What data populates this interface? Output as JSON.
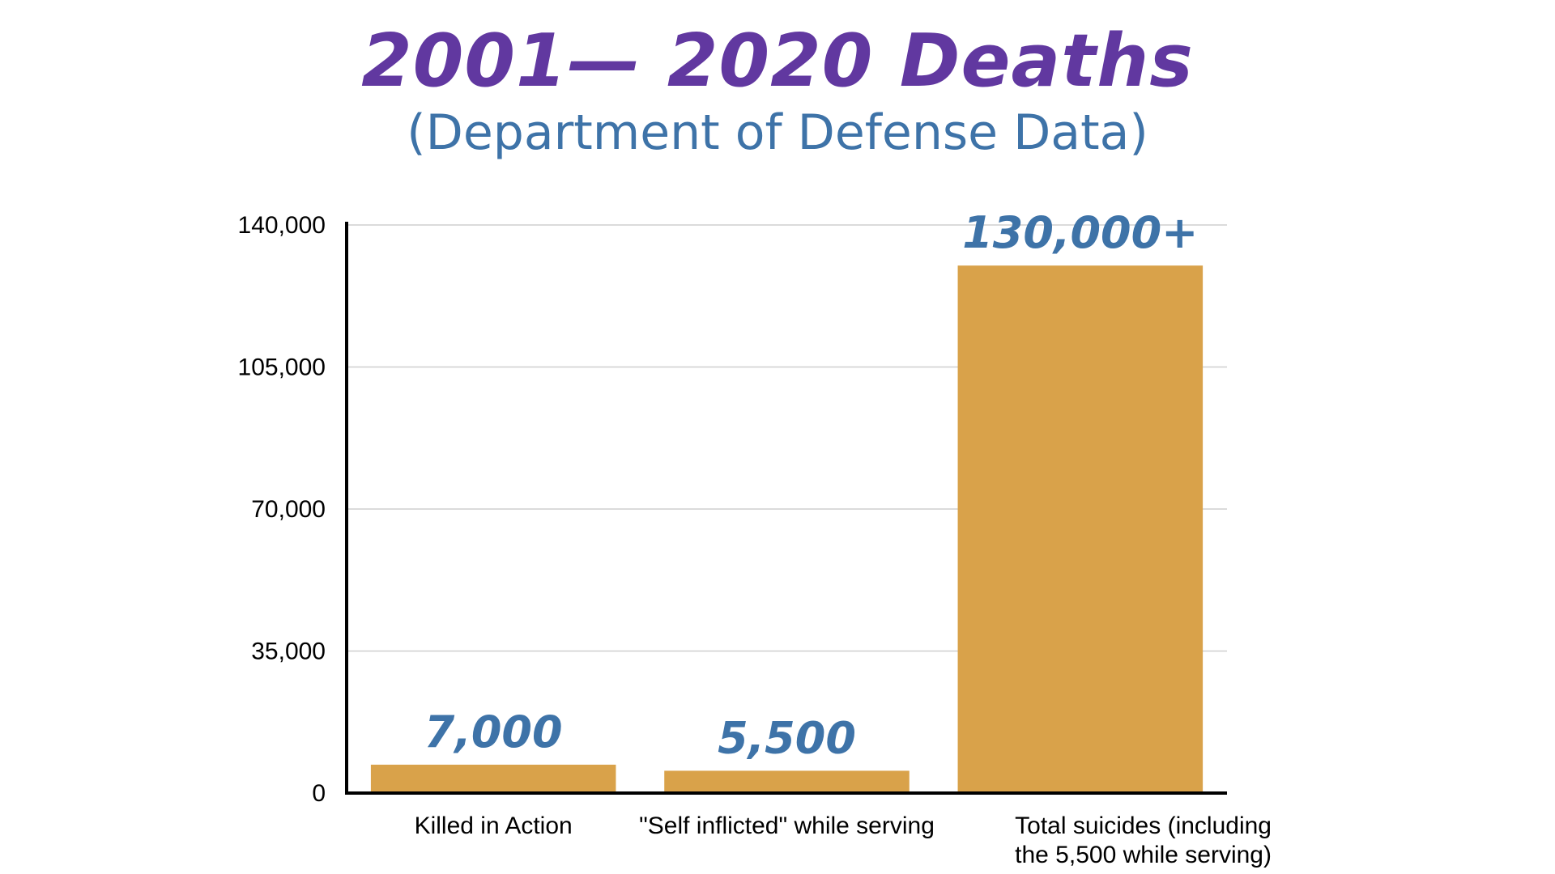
{
  "colors": {
    "title": "#6138a0",
    "subtitle": "#3e73a8",
    "bar": "#d9a24a",
    "data_label": "#3e73a8",
    "grid": "#cfcfcf",
    "axis": "#000000"
  },
  "chart_data": {
    "type": "bar",
    "title": "2001— 2020 Deaths",
    "subtitle": "(Department of Defense Data)",
    "categories": [
      [
        "Killed in Action"
      ],
      [
        "\"Self inflicted\" while serving"
      ],
      [
        "Total suicides (including",
        "the 5,500 while serving)"
      ]
    ],
    "values": [
      7000,
      5500,
      130000
    ],
    "data_labels": [
      "7,000",
      "5,500",
      "130,000+"
    ],
    "ylim": [
      0,
      140000
    ],
    "yticks": [
      0,
      35000,
      70000,
      105000,
      140000
    ],
    "ytick_labels": [
      "0",
      "35,000",
      "70,000",
      "105,000",
      "140,000"
    ],
    "grid": true,
    "xlabel": "",
    "ylabel": ""
  }
}
